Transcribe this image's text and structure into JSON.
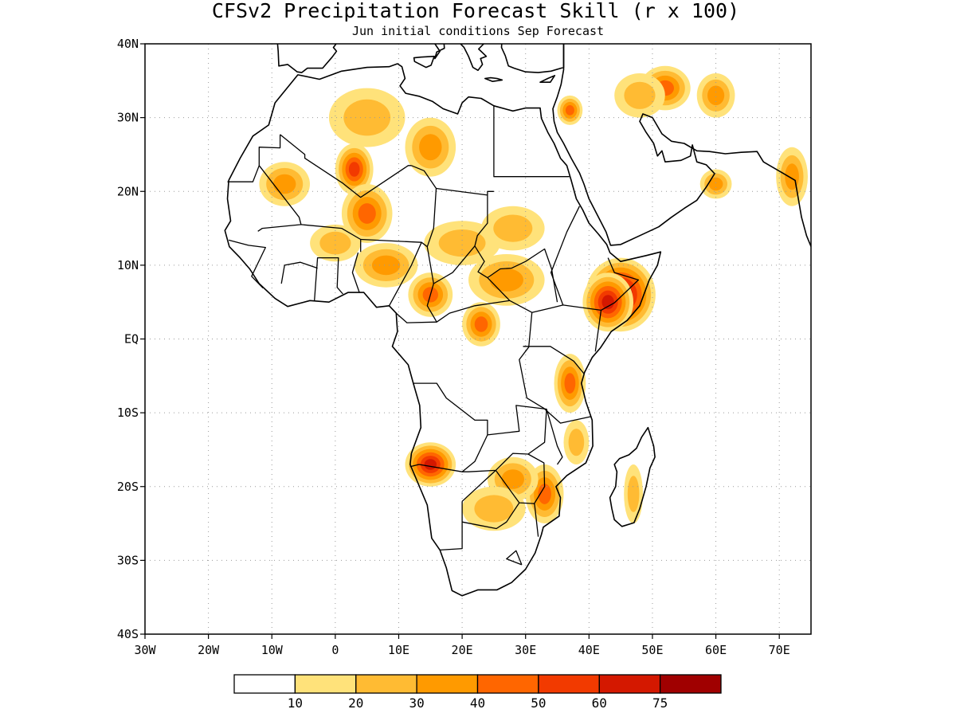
{
  "title": "CFSv2 Precipitation Forecast Skill (r x 100)",
  "subtitle": "Jun initial conditions  Sep Forecast",
  "chart_data": {
    "type": "heatmap",
    "map_extent": {
      "lon": [
        -30,
        75
      ],
      "lat": [
        -40,
        40
      ]
    },
    "y_ticks": [
      {
        "lat": 40,
        "label": "40N"
      },
      {
        "lat": 30,
        "label": "30N"
      },
      {
        "lat": 20,
        "label": "20N"
      },
      {
        "lat": 10,
        "label": "10N"
      },
      {
        "lat": 0,
        "label": "EQ"
      },
      {
        "lat": -10,
        "label": "10S"
      },
      {
        "lat": -20,
        "label": "20S"
      },
      {
        "lat": -30,
        "label": "30S"
      },
      {
        "lat": -40,
        "label": "40S"
      }
    ],
    "x_ticks": [
      {
        "lon": -30,
        "label": "30W"
      },
      {
        "lon": -20,
        "label": "20W"
      },
      {
        "lon": -10,
        "label": "10W"
      },
      {
        "lon": 0,
        "label": "0"
      },
      {
        "lon": 10,
        "label": "10E"
      },
      {
        "lon": 20,
        "label": "20E"
      },
      {
        "lon": 30,
        "label": "30E"
      },
      {
        "lon": 40,
        "label": "40E"
      },
      {
        "lon": 50,
        "label": "50E"
      },
      {
        "lon": 60,
        "label": "60E"
      },
      {
        "lon": 70,
        "label": "70E"
      }
    ],
    "grid": true,
    "colorbar": {
      "colors": [
        "#ffffff",
        "#ffe27a",
        "#ffbb33",
        "#ff9a00",
        "#ff6600",
        "#f23a00",
        "#d41800",
        "#a00000"
      ],
      "labels": [
        "10",
        "20",
        "30",
        "40",
        "50",
        "60",
        "75"
      ]
    },
    "skill_regions": [
      {
        "lon": 45,
        "lat": 6,
        "rx": 5.5,
        "ry": 5,
        "value": 75
      },
      {
        "lon": 43,
        "lat": 5,
        "rx": 4,
        "ry": 4,
        "value": 60
      },
      {
        "lon": 37,
        "lat": -6,
        "rx": 2.5,
        "ry": 4,
        "value": 45
      },
      {
        "lon": 15,
        "lat": -17,
        "rx": 4,
        "ry": 3,
        "value": 60
      },
      {
        "lon": 3,
        "lat": 23,
        "rx": 3,
        "ry": 3.5,
        "value": 50
      },
      {
        "lon": 5,
        "lat": 17,
        "rx": 4,
        "ry": 4,
        "value": 40
      },
      {
        "lon": 15,
        "lat": 6,
        "rx": 3.5,
        "ry": 3,
        "value": 45
      },
      {
        "lon": 23,
        "lat": 2,
        "rx": 3,
        "ry": 3,
        "value": 45
      },
      {
        "lon": 27,
        "lat": 8,
        "rx": 6,
        "ry": 3.5,
        "value": 35
      },
      {
        "lon": 20,
        "lat": 13,
        "rx": 6,
        "ry": 3,
        "value": 25
      },
      {
        "lon": 8,
        "lat": 10,
        "rx": 5,
        "ry": 3,
        "value": 30
      },
      {
        "lon": 0,
        "lat": 13,
        "rx": 4,
        "ry": 2.5,
        "value": 20
      },
      {
        "lon": -8,
        "lat": 21,
        "rx": 4,
        "ry": 3,
        "value": 30
      },
      {
        "lon": 15,
        "lat": 26,
        "rx": 4,
        "ry": 4,
        "value": 30
      },
      {
        "lon": 5,
        "lat": 30,
        "rx": 6,
        "ry": 4,
        "value": 25
      },
      {
        "lon": 28,
        "lat": 15,
        "rx": 5,
        "ry": 3,
        "value": 25
      },
      {
        "lon": 33,
        "lat": -21,
        "rx": 3,
        "ry": 4,
        "value": 45
      },
      {
        "lon": 28,
        "lat": -19,
        "rx": 4,
        "ry": 3,
        "value": 35
      },
      {
        "lon": 25,
        "lat": -23,
        "rx": 5,
        "ry": 3,
        "value": 20
      },
      {
        "lon": 47,
        "lat": -21,
        "rx": 1.5,
        "ry": 4,
        "value": 20
      },
      {
        "lon": 37,
        "lat": 31,
        "rx": 2,
        "ry": 2,
        "value": 40
      },
      {
        "lon": 52,
        "lat": 34,
        "rx": 4,
        "ry": 3,
        "value": 45
      },
      {
        "lon": 60,
        "lat": 33,
        "rx": 3,
        "ry": 3,
        "value": 35
      },
      {
        "lon": 48,
        "lat": 33,
        "rx": 4,
        "ry": 3,
        "value": 25
      },
      {
        "lon": 72,
        "lat": 22,
        "rx": 2.5,
        "ry": 4,
        "value": 30
      },
      {
        "lon": 60,
        "lat": 21,
        "rx": 2.5,
        "ry": 2,
        "value": 35
      },
      {
        "lon": 38,
        "lat": -14,
        "rx": 2,
        "ry": 3,
        "value": 20
      }
    ]
  }
}
